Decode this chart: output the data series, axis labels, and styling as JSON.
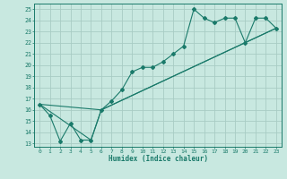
{
  "xlabel": "Humidex (Indice chaleur)",
  "ylabel": "",
  "bg_color": "#c8e8e0",
  "line_color": "#1a7a6a",
  "grid_color": "#a8ccc4",
  "xlim": [
    -0.5,
    23.5
  ],
  "ylim": [
    12.7,
    25.5
  ],
  "xticks": [
    0,
    1,
    2,
    3,
    4,
    5,
    6,
    7,
    8,
    9,
    10,
    11,
    12,
    13,
    14,
    15,
    16,
    17,
    18,
    19,
    20,
    21,
    22,
    23
  ],
  "yticks": [
    13,
    14,
    15,
    16,
    17,
    18,
    19,
    20,
    21,
    22,
    23,
    24,
    25
  ],
  "line1_x": [
    0,
    1,
    2,
    3,
    4,
    5,
    6,
    7,
    8,
    9,
    10,
    11,
    12,
    13,
    14,
    15,
    16,
    17,
    18,
    19,
    20,
    21,
    22,
    23
  ],
  "line1_y": [
    16.5,
    15.5,
    13.2,
    14.8,
    13.3,
    13.3,
    16.0,
    16.8,
    17.8,
    19.4,
    19.8,
    19.8,
    20.3,
    21.0,
    21.7,
    25.0,
    24.2,
    23.8,
    24.2,
    24.2,
    22.0,
    24.2,
    24.2,
    23.3
  ],
  "line2_x": [
    0,
    5,
    6,
    23
  ],
  "line2_y": [
    16.5,
    13.3,
    16.0,
    23.3
  ],
  "line3_x": [
    0,
    6,
    23
  ],
  "line3_y": [
    16.5,
    16.0,
    23.3
  ],
  "xlabel_fontsize": 5.5,
  "tick_fontsize": 4.5
}
